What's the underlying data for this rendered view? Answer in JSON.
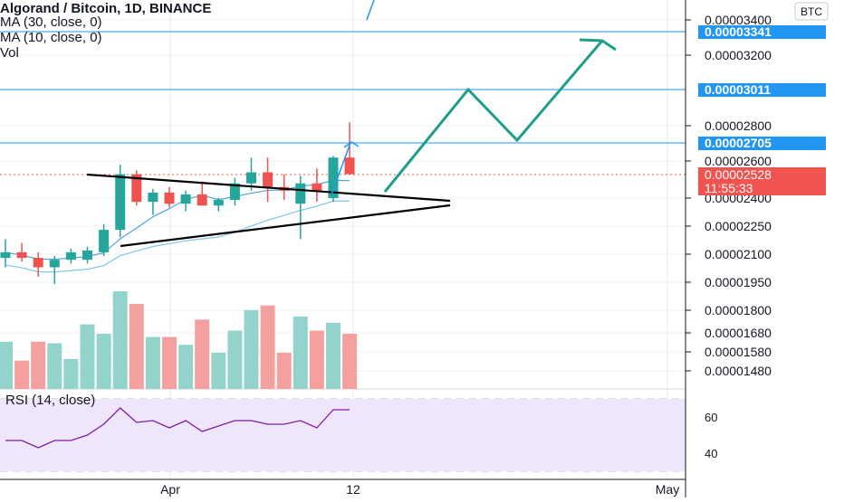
{
  "header": {
    "title": "Algorand / Bitcoin, 1D, BINANCE",
    "ma30": "MA (30, close, 0)",
    "ma10": "MA (10, close, 0)",
    "vol": "Vol"
  },
  "rsi_label": "RSI (14, close)",
  "currency": "BTC",
  "colors": {
    "up": "#26a69a",
    "down": "#ef5350",
    "vol_up": "#93d3cc",
    "vol_down": "#f4a09e",
    "drawing": "#1e9e8a",
    "hline": "#2196f3",
    "rsi": "#7b1fa2",
    "rsi_bg": "#f0e6fb",
    "ma": "#4fa3e0",
    "price_tag": "#f05350"
  },
  "chart_data": [
    {
      "type": "candlestick",
      "title": "Algorand / Bitcoin, 1D, BINANCE",
      "price_axis_ticks": [
        "0.00003400",
        "0.00003200",
        "0.00002800",
        "0.00002600",
        "0.00002400",
        "0.00002250",
        "0.00002100",
        "0.00001950",
        "0.00001800",
        "0.00001680",
        "0.00001580",
        "0.00001480"
      ],
      "time_axis_ticks": [
        "Apr",
        "12",
        "May"
      ],
      "horizontal_lines": [
        "0.00003341",
        "0.00003011",
        "0.00002705"
      ],
      "last_price": "0.00002528",
      "countdown": "11:55:33",
      "candles": [
        {
          "o": 2.08e-05,
          "h": 2.18e-05,
          "l": 2.03e-05,
          "c": 2.11e-05,
          "vol": 150
        },
        {
          "o": 2.11e-05,
          "h": 2.16e-05,
          "l": 2.06e-05,
          "c": 2.08e-05,
          "vol": 90
        },
        {
          "o": 2.08e-05,
          "h": 2.11e-05,
          "l": 1.98e-05,
          "c": 2.03e-05,
          "vol": 150
        },
        {
          "o": 2.03e-05,
          "h": 2.09e-05,
          "l": 1.94e-05,
          "c": 2.07e-05,
          "vol": 145
        },
        {
          "o": 2.07e-05,
          "h": 2.13e-05,
          "l": 2.05e-05,
          "c": 2.11e-05,
          "vol": 95
        },
        {
          "o": 2.07e-05,
          "h": 2.14e-05,
          "l": 2.05e-05,
          "c": 2.12e-05,
          "vol": 205
        },
        {
          "o": 2.11e-05,
          "h": 2.26e-05,
          "l": 2.09e-05,
          "c": 2.23e-05,
          "vol": 175
        },
        {
          "o": 2.23e-05,
          "h": 2.58e-05,
          "l": 2.19e-05,
          "c": 2.53e-05,
          "vol": 310
        },
        {
          "o": 2.53e-05,
          "h": 2.55e-05,
          "l": 2.36e-05,
          "c": 2.38e-05,
          "vol": 270
        },
        {
          "o": 2.38e-05,
          "h": 2.45e-05,
          "l": 2.31e-05,
          "c": 2.43e-05,
          "vol": 165
        },
        {
          "o": 2.43e-05,
          "h": 2.46e-05,
          "l": 2.35e-05,
          "c": 2.37e-05,
          "vol": 165
        },
        {
          "o": 2.37e-05,
          "h": 2.44e-05,
          "l": 2.33e-05,
          "c": 2.42e-05,
          "vol": 140
        },
        {
          "o": 2.42e-05,
          "h": 2.49e-05,
          "l": 2.36e-05,
          "c": 2.36e-05,
          "vol": 220
        },
        {
          "o": 2.36e-05,
          "h": 2.4e-05,
          "l": 2.33e-05,
          "c": 2.39e-05,
          "vol": 115
        },
        {
          "o": 2.39e-05,
          "h": 2.51e-05,
          "l": 2.36e-05,
          "c": 2.48e-05,
          "vol": 185
        },
        {
          "o": 2.48e-05,
          "h": 2.62e-05,
          "l": 2.44e-05,
          "c": 2.54e-05,
          "vol": 250
        },
        {
          "o": 2.54e-05,
          "h": 2.62e-05,
          "l": 2.38e-05,
          "c": 2.46e-05,
          "vol": 265
        },
        {
          "o": 2.46e-05,
          "h": 2.53e-05,
          "l": 2.39e-05,
          "c": 2.44e-05,
          "vol": 115
        },
        {
          "o": 2.37e-05,
          "h": 2.52e-05,
          "l": 2.18e-05,
          "c": 2.48e-05,
          "vol": 230
        },
        {
          "o": 2.48e-05,
          "h": 2.56e-05,
          "l": 2.38e-05,
          "c": 2.44e-05,
          "vol": 185
        },
        {
          "o": 2.4e-05,
          "h": 2.63e-05,
          "l": 2.38e-05,
          "c": 2.62e-05,
          "vol": 210
        },
        {
          "o": 2.62e-05,
          "h": 2.82e-05,
          "l": 2.53e-05,
          "c": 2.53e-05,
          "vol": 175
        }
      ],
      "rsi_ticks": [
        "60",
        "40"
      ],
      "rsi_values": [
        47,
        47,
        43,
        47,
        47,
        50,
        56,
        65,
        57,
        58,
        54,
        58,
        52,
        55,
        58,
        58,
        56,
        56,
        58,
        54,
        64,
        64
      ]
    }
  ]
}
